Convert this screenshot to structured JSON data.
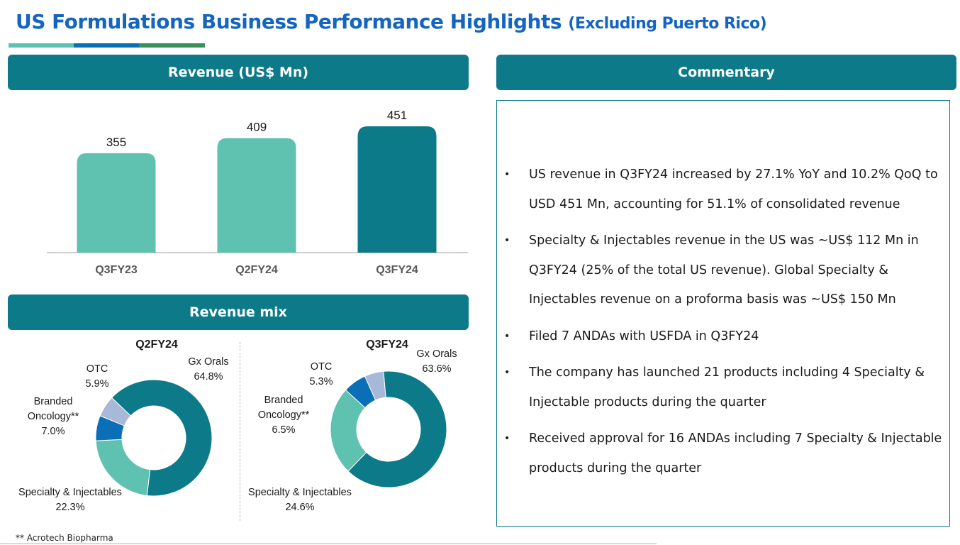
{
  "header": {
    "title": "US Formulations Business Performance Highlights",
    "subtitle": "(Excluding Puerto Rico)"
  },
  "colors": {
    "teal_dark": "#0c7a88",
    "teal_light": "#5fc2b0",
    "blue": "#0b6fb8",
    "lavender": "#a8b8d8",
    "title_blue": "#1565c0"
  },
  "revenue_panel": {
    "title": "Revenue (US$ Mn)"
  },
  "mix_panel": {
    "title": "Revenue mix"
  },
  "commentary_panel": {
    "title": "Commentary",
    "bullets": [
      "US revenue in Q3FY24 increased by 27.1% YoY and 10.2% QoQ to USD 451 Mn, accounting for 51.1% of consolidated revenue",
      "Specialty & Injectables revenue in the US was ~US$ 112 Mn in Q3FY24 (25% of the total US revenue). Global Specialty & Injectables revenue on a proforma basis was ~US$ 150 Mn",
      "Filed 7 ANDAs with USFDA in Q3FY24",
      "The company has launched 21 products including 4 Specialty & Injectable products during the quarter",
      "Received approval for 16 ANDAs including 7 Specialty & Injectable products during the quarter"
    ]
  },
  "footnote": "** Acrotech Biopharma",
  "chart_data": [
    {
      "type": "bar",
      "title": "Revenue (US$ Mn)",
      "categories": [
        "Q3FY23",
        "Q2FY24",
        "Q3FY24"
      ],
      "values": [
        355,
        409,
        451
      ],
      "value_labels": [
        "355",
        "409",
        "451"
      ],
      "bar_colors": [
        "#5fc2b0",
        "#5fc2b0",
        "#0c7a88"
      ],
      "ylim": [
        0,
        451
      ],
      "grid": false
    },
    {
      "type": "pie",
      "title": "Q2FY24",
      "slices": [
        {
          "name": "Gx Orals",
          "value": 64.8,
          "label": "64.8%",
          "color": "#0c7a88"
        },
        {
          "name": "Specialty & Injectables",
          "value": 22.3,
          "label": "22.3%",
          "color": "#5fc2b0"
        },
        {
          "name_lines": [
            "Branded",
            "Oncology**"
          ],
          "value": 7.0,
          "label": "7.0%",
          "color": "#0b6fb8"
        },
        {
          "name": "OTC",
          "value": 5.9,
          "label": "5.9%",
          "color": "#a8b8d8"
        }
      ]
    },
    {
      "type": "pie",
      "title": "Q3FY24",
      "slices": [
        {
          "name": "Gx Orals",
          "value": 63.6,
          "label": "63.6%",
          "color": "#0c7a88"
        },
        {
          "name": "Specialty & Injectables",
          "value": 24.6,
          "label": "24.6%",
          "color": "#5fc2b0"
        },
        {
          "name_lines": [
            "Branded",
            "Oncology**"
          ],
          "value": 6.5,
          "label": "6.5%",
          "color": "#0b6fb8"
        },
        {
          "name": "OTC",
          "value": 5.3,
          "label": "5.3%",
          "color": "#a8b8d8"
        }
      ]
    }
  ]
}
